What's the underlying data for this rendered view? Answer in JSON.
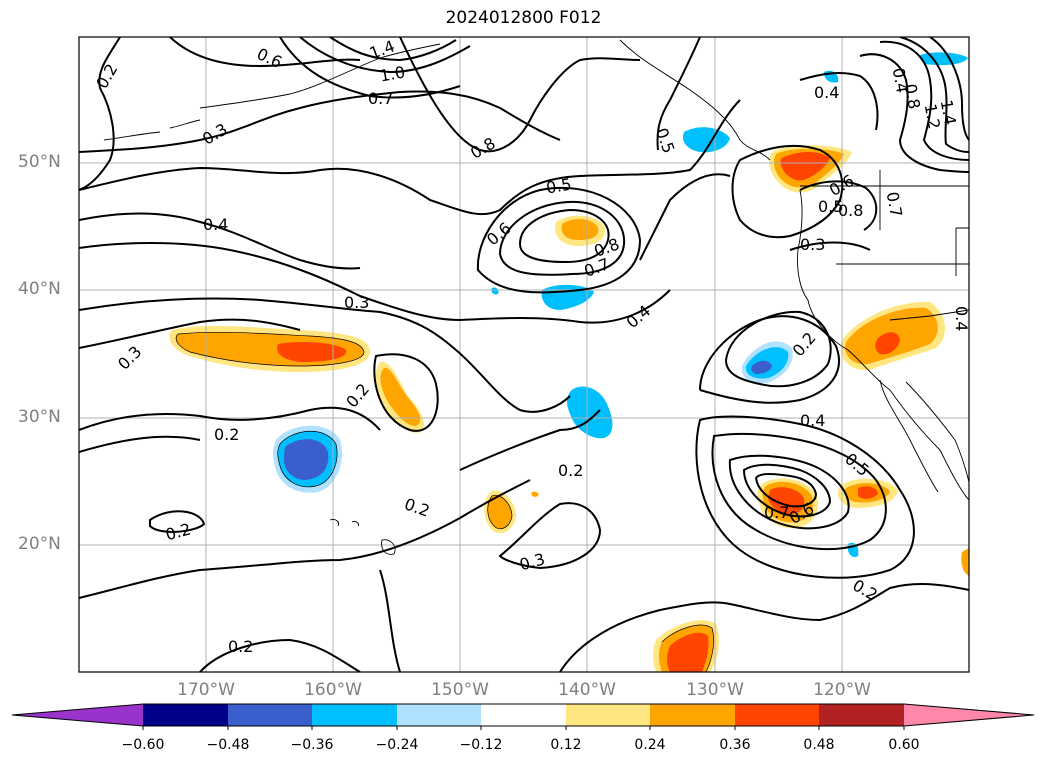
{
  "title": "2024012800 F012",
  "lat_labels": [
    "50°N",
    "40°N",
    "30°N",
    "20°N"
  ],
  "lon_labels": [
    "170°W",
    "160°W",
    "150°W",
    "140°W",
    "130°W",
    "120°W"
  ],
  "colorbar": {
    "ticks": [
      "−0.60",
      "−0.48",
      "−0.36",
      "−0.24",
      "−0.12",
      "0.12",
      "0.24",
      "0.36",
      "0.48",
      "0.60"
    ],
    "colors": [
      "#9933cc",
      "#00008b",
      "#3a5fcd",
      "#00bfff",
      "#b0e2ff",
      "#ffffff",
      "#ffe680",
      "#ffa500",
      "#ff4500",
      "#b22222",
      "#ff88aa"
    ]
  },
  "contour_labels": [
    "0.2",
    "0.6",
    "1.4",
    "1.0",
    "0.7",
    "0.3",
    "0.8",
    "0.5",
    "0.4",
    "0.6",
    "0.8",
    "0.7",
    "0.3",
    "0.3",
    "0.2",
    "0.2",
    "0.2",
    "0.2",
    "0.2",
    "0.3",
    "0.4",
    "0.2",
    "0.4",
    "0.5",
    "0.6",
    "0.7",
    "0.2",
    "0.2",
    "0.4",
    "0.5",
    "0.6",
    "0.3",
    "0.4",
    "0.8",
    "1.2",
    "1.4",
    "0.4",
    "0.7",
    "0.8",
    "0.5"
  ]
}
